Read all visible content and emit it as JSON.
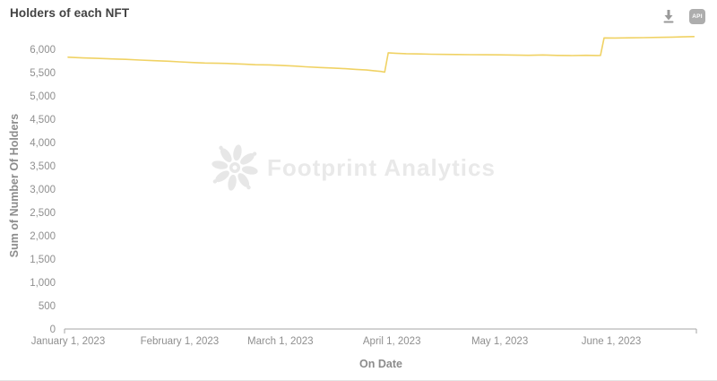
{
  "header": {
    "title": "Holders of each NFT",
    "icons": {
      "download": "download-icon",
      "api_badge_label": "API"
    }
  },
  "colors": {
    "line": "#f0d264",
    "axis_line": "#a6a6a6",
    "tick_label": "#8f8f8f",
    "axis_name": "#8c8c8c",
    "title": "#424242",
    "watermark": "#e9e9e9",
    "icon_gray": "#9a9a9a"
  },
  "chart_data": {
    "type": "line",
    "title": "Holders of each NFT",
    "xlabel": "On Date",
    "ylabel": "Sum of Number Of Holders",
    "watermark": "Footprint Analytics",
    "grid": false,
    "legend": false,
    "y_axis": {
      "min": 0,
      "max": 6000,
      "step": 500,
      "tick_labels": [
        "0",
        "500",
        "1,000",
        "1,500",
        "2,000",
        "2,500",
        "3,000",
        "3,500",
        "4,000",
        "4,500",
        "5,000",
        "5,500",
        "6,000"
      ]
    },
    "x_axis": {
      "unit": "days since January 1, 2023",
      "tick_days": [
        0,
        31,
        59,
        90,
        120,
        151
      ],
      "tick_labels": [
        "January 1, 2023",
        "February 1, 2023",
        "March 1, 2023",
        "April 1, 2023",
        "May 1, 2023",
        "June 1, 2023"
      ],
      "day_range": [
        0,
        175
      ]
    },
    "series": [
      {
        "name": "Sum of Number Of Holders",
        "color": "#f0d264",
        "points": [
          [
            0,
            5830
          ],
          [
            4,
            5815
          ],
          [
            8,
            5805
          ],
          [
            12,
            5795
          ],
          [
            16,
            5785
          ],
          [
            20,
            5770
          ],
          [
            24,
            5755
          ],
          [
            28,
            5745
          ],
          [
            31,
            5730
          ],
          [
            35,
            5715
          ],
          [
            38,
            5705
          ],
          [
            42,
            5700
          ],
          [
            45,
            5695
          ],
          [
            49,
            5680
          ],
          [
            52,
            5670
          ],
          [
            56,
            5665
          ],
          [
            59,
            5655
          ],
          [
            63,
            5640
          ],
          [
            66,
            5625
          ],
          [
            70,
            5610
          ],
          [
            73,
            5600
          ],
          [
            77,
            5585
          ],
          [
            80,
            5570
          ],
          [
            83,
            5555
          ],
          [
            85,
            5540
          ],
          [
            87,
            5525
          ],
          [
            88,
            5510
          ],
          [
            89,
            5925
          ],
          [
            91,
            5915
          ],
          [
            94,
            5905
          ],
          [
            98,
            5900
          ],
          [
            101,
            5895
          ],
          [
            105,
            5890
          ],
          [
            108,
            5888
          ],
          [
            112,
            5885
          ],
          [
            116,
            5882
          ],
          [
            120,
            5880
          ],
          [
            124,
            5876
          ],
          [
            128,
            5872
          ],
          [
            132,
            5878
          ],
          [
            136,
            5870
          ],
          [
            140,
            5866
          ],
          [
            144,
            5872
          ],
          [
            147,
            5868
          ],
          [
            148,
            5870
          ],
          [
            149,
            6245
          ],
          [
            152,
            6242
          ],
          [
            156,
            6246
          ],
          [
            160,
            6250
          ],
          [
            164,
            6256
          ],
          [
            168,
            6262
          ],
          [
            171,
            6268
          ],
          [
            174,
            6274
          ]
        ]
      }
    ]
  }
}
